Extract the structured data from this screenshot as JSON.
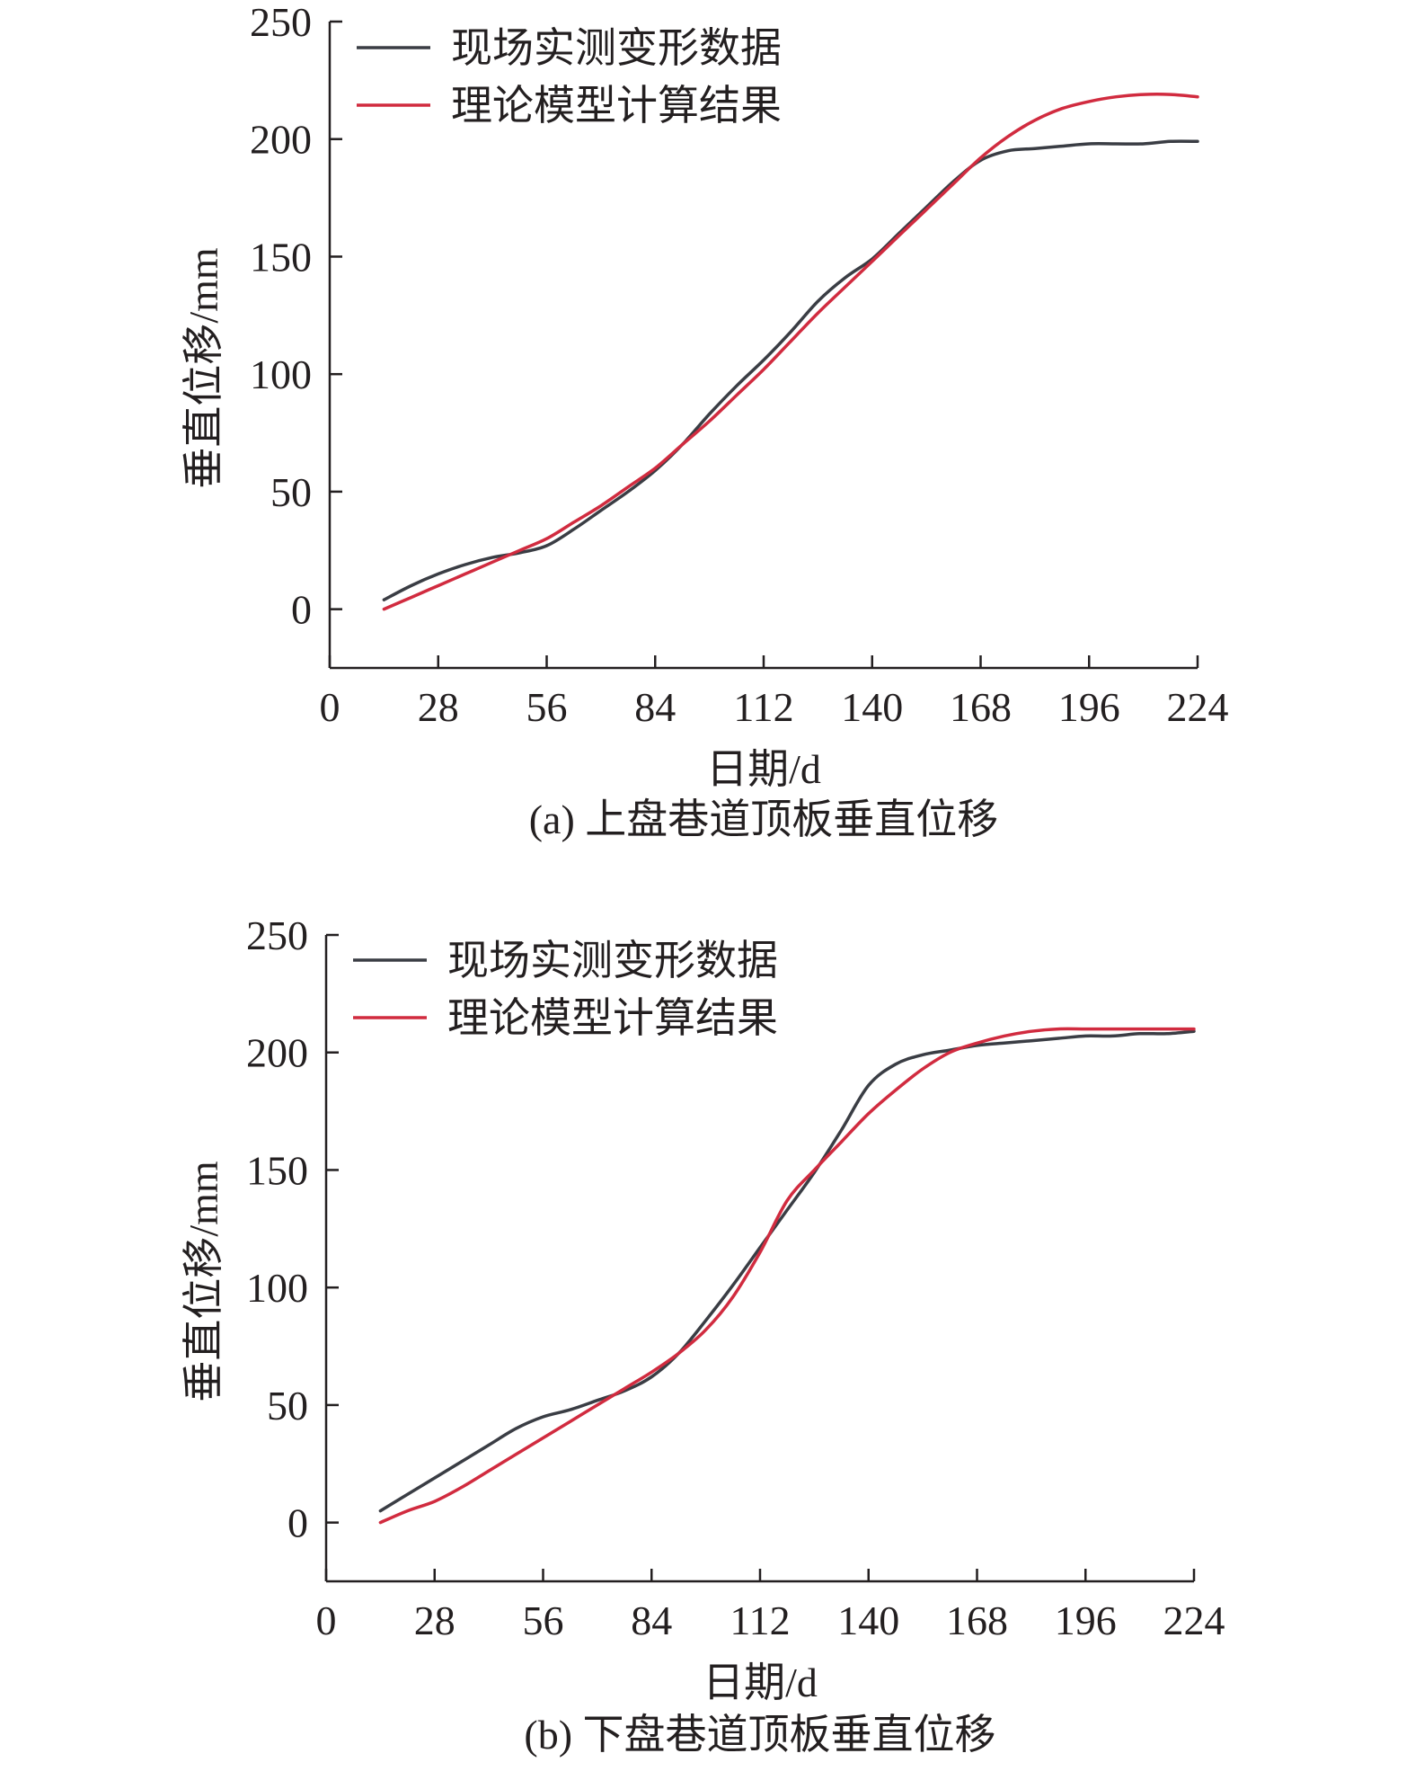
{
  "colors": {
    "measured": "#3a3d44",
    "model": "#d12b3f",
    "axis": "#231f20"
  },
  "chart_data": [
    {
      "type": "line",
      "caption": "(a) 上盘巷道顶板垂直位移",
      "xlabel": "日期/d",
      "ylabel": "垂直位移/mm",
      "xlim": [
        0,
        224
      ],
      "ylim": [
        -25,
        250
      ],
      "xticks": [
        0,
        28,
        56,
        84,
        112,
        140,
        168,
        196,
        224
      ],
      "yticks": [
        0,
        50,
        100,
        150,
        200,
        250
      ],
      "legend_position": "top-left",
      "series": [
        {
          "name": "现场实测变形数据",
          "color_key": "measured",
          "x": [
            14,
            21,
            28,
            35,
            42,
            49,
            56,
            63,
            70,
            77,
            84,
            91,
            98,
            105,
            112,
            119,
            126,
            133,
            140,
            147,
            154,
            161,
            168,
            175,
            182,
            189,
            196,
            203,
            210,
            217,
            224
          ],
          "y": [
            4,
            10,
            15,
            19,
            22,
            24,
            27,
            34,
            42,
            50,
            59,
            70,
            83,
            95,
            106,
            118,
            131,
            141,
            149,
            160,
            171,
            182,
            191,
            195,
            196,
            197,
            198,
            198,
            198,
            199,
            199
          ]
        },
        {
          "name": "理论模型计算结果",
          "color_key": "model",
          "x": [
            14,
            21,
            28,
            35,
            42,
            49,
            56,
            63,
            70,
            77,
            84,
            91,
            98,
            105,
            112,
            119,
            126,
            133,
            140,
            147,
            154,
            161,
            168,
            175,
            182,
            189,
            196,
            203,
            210,
            217,
            224
          ],
          "y": [
            0,
            5,
            10,
            15,
            20,
            25,
            30,
            37,
            44,
            52,
            60,
            70,
            80,
            91,
            102,
            114,
            126,
            137,
            148,
            159,
            170,
            181,
            192,
            201,
            208,
            213,
            216,
            218,
            219,
            219,
            218
          ]
        }
      ]
    },
    {
      "type": "line",
      "caption": "(b) 下盘巷道顶板垂直位移",
      "xlabel": "日期/d",
      "ylabel": "垂直位移/mm",
      "xlim": [
        0,
        224
      ],
      "ylim": [
        -25,
        250
      ],
      "xticks": [
        0,
        28,
        56,
        84,
        112,
        140,
        168,
        196,
        224
      ],
      "yticks": [
        0,
        50,
        100,
        150,
        200,
        250
      ],
      "legend_position": "top-left",
      "series": [
        {
          "name": "现场实测变形数据",
          "color_key": "measured",
          "x": [
            14,
            21,
            28,
            35,
            42,
            49,
            56,
            63,
            70,
            77,
            84,
            91,
            98,
            105,
            112,
            119,
            126,
            133,
            140,
            147,
            154,
            161,
            168,
            175,
            182,
            189,
            196,
            203,
            210,
            217,
            224
          ],
          "y": [
            5,
            12,
            19,
            26,
            33,
            40,
            45,
            48,
            52,
            56,
            62,
            72,
            86,
            101,
            117,
            133,
            149,
            167,
            186,
            195,
            199,
            201,
            203,
            204,
            205,
            206,
            207,
            207,
            208,
            208,
            209
          ]
        },
        {
          "name": "理论模型计算结果",
          "color_key": "model",
          "x": [
            14,
            21,
            28,
            35,
            42,
            49,
            56,
            63,
            70,
            77,
            84,
            91,
            98,
            105,
            112,
            119,
            126,
            133,
            140,
            147,
            154,
            161,
            168,
            175,
            182,
            189,
            196,
            203,
            210,
            217,
            224
          ],
          "y": [
            0,
            5,
            9,
            15,
            22,
            29,
            36,
            43,
            50,
            57,
            64,
            72,
            82,
            96,
            115,
            137,
            150,
            162,
            174,
            184,
            193,
            200,
            204,
            207,
            209,
            210,
            210,
            210,
            210,
            210,
            210
          ]
        }
      ]
    }
  ]
}
